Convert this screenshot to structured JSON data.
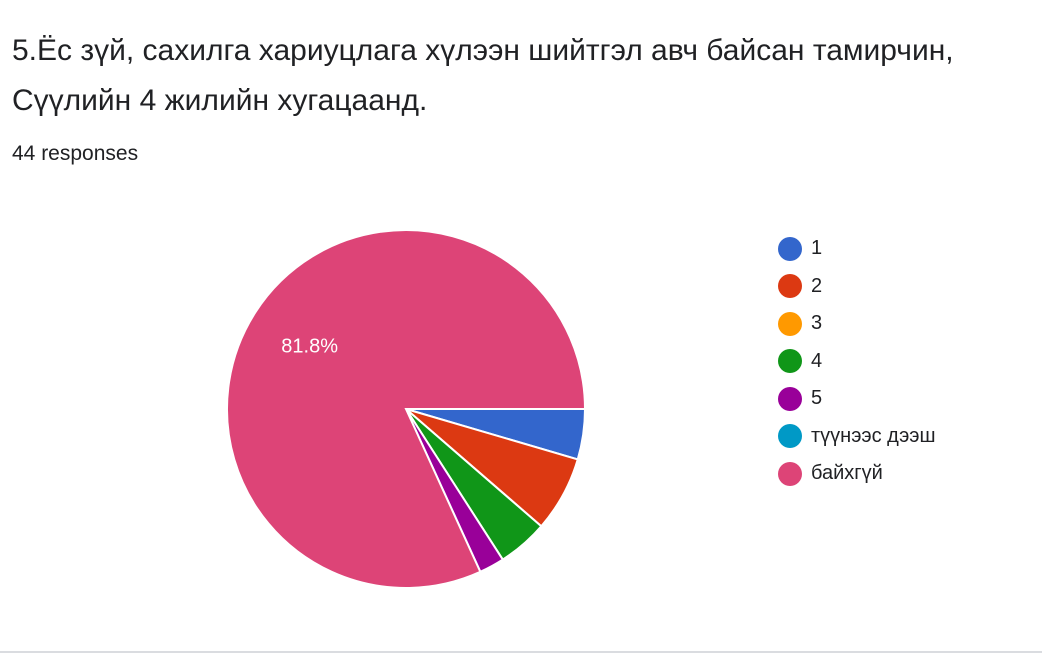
{
  "question": {
    "title_line1": "5.Ёс зүй, сахилга хариуцлага хүлээн шийтгэл авч байсан тамирчин,",
    "title_line2": "Сүүлийн 4 жилийн хугацаанд.",
    "responses": "44 responses"
  },
  "chart_data": {
    "type": "pie",
    "total": 44,
    "slices": [
      {
        "label": "1",
        "count": 2,
        "percent": 4.5,
        "color": "#3366cc"
      },
      {
        "label": "2",
        "count": 3,
        "percent": 6.8,
        "color": "#dc3912"
      },
      {
        "label": "3",
        "count": 0,
        "percent": 0,
        "color": "#ff9900"
      },
      {
        "label": "4",
        "count": 2,
        "percent": 4.5,
        "color": "#109618"
      },
      {
        "label": "5",
        "count": 1,
        "percent": 2.3,
        "color": "#990099"
      },
      {
        "label": "түүнээс дээш",
        "count": 0,
        "percent": 0,
        "color": "#0099c6"
      },
      {
        "label": "байхгүй",
        "count": 36,
        "percent": 81.8,
        "color": "#dd4477"
      }
    ],
    "data_labels": [
      {
        "slice": "байхгүй",
        "text": "81.8%"
      }
    ],
    "legend_position": "right"
  }
}
